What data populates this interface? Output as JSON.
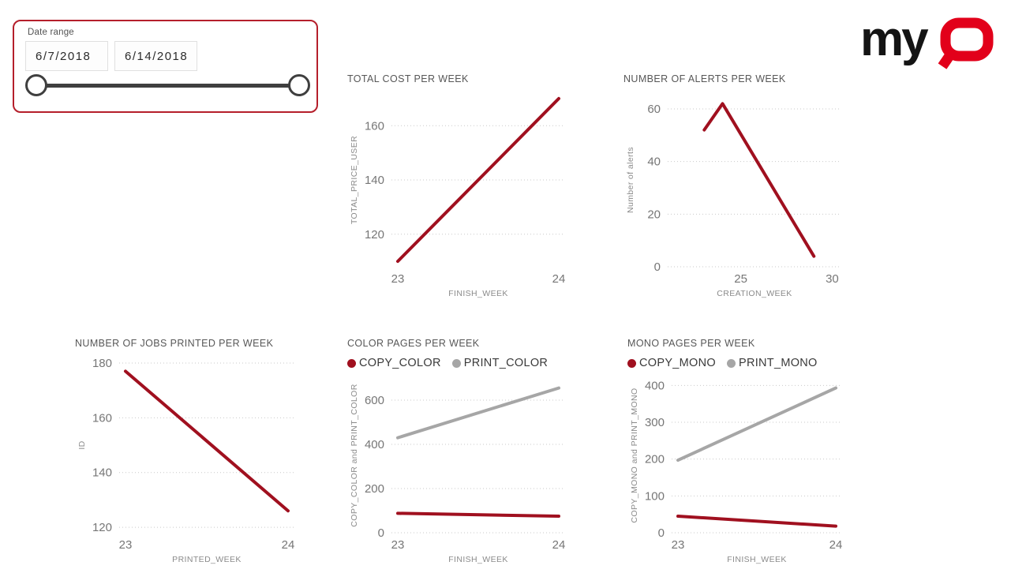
{
  "slicer": {
    "label": "Date range",
    "start_value": "6/7/2018",
    "end_value": "6/14/2018",
    "border_color": "#b51f2b",
    "slider": {
      "left_position_pct": 0,
      "right_position_pct": 100
    }
  },
  "logo": {
    "text_my": "my",
    "text_q": "Q",
    "my_color": "#141414",
    "q_color": "#e2001a"
  },
  "colors": {
    "line_red": "#a0101f",
    "line_gray": "#a6a6a6",
    "gridline": "#c9c9c9"
  },
  "chart_data": [
    {
      "type": "line",
      "title": "TOTAL COST PER WEEK",
      "xlabel": "FINISH_WEEK",
      "ylabel": "TOTAL_PRICE_USER",
      "x": [
        23,
        24
      ],
      "xticks": [
        23,
        24
      ],
      "xlim": [
        23,
        24
      ],
      "xpad": 8,
      "yticks": [
        120,
        140,
        160
      ],
      "ylim": [
        108,
        172
      ],
      "grid": "dotted-horizontal",
      "legend_position": "none",
      "series": [
        {
          "name": "TOTAL_PRICE_USER",
          "color": "#a0101f",
          "values": [
            110,
            170
          ]
        }
      ]
    },
    {
      "type": "line",
      "title": "NUMBER OF ALERTS PER WEEK",
      "xlabel": "CREATION_WEEK",
      "ylabel": "Number of alerts",
      "x": [
        23,
        24,
        29
      ],
      "xticks": [
        25,
        30
      ],
      "xlim": [
        21,
        30.5
      ],
      "xpad": 0,
      "yticks": [
        0,
        20,
        40,
        60
      ],
      "ylim": [
        0,
        66
      ],
      "grid": "dotted-horizontal",
      "legend_position": "none",
      "series": [
        {
          "name": "Number of alerts",
          "color": "#a0101f",
          "values": [
            52,
            62,
            4
          ]
        }
      ]
    },
    {
      "type": "line",
      "title": "NUMBER OF JOBS PRINTED PER WEEK",
      "xlabel": "PRINTED_WEEK",
      "ylabel": "ID",
      "x": [
        23,
        24
      ],
      "xticks": [
        23,
        24
      ],
      "xlim": [
        23,
        24
      ],
      "xpad": 8,
      "yticks": [
        120,
        140,
        160,
        180
      ],
      "ylim": [
        118,
        182
      ],
      "grid": "dotted-horizontal",
      "legend_position": "none",
      "series": [
        {
          "name": "ID",
          "color": "#a0101f",
          "values": [
            177,
            126
          ]
        }
      ]
    },
    {
      "type": "line",
      "title": "COLOR PAGES PER WEEK",
      "xlabel": "FINISH_WEEK",
      "ylabel": "COPY_COLOR and PRINT_COLOR",
      "x": [
        23,
        24
      ],
      "xticks": [
        23,
        24
      ],
      "xlim": [
        23,
        24
      ],
      "xpad": 8,
      "yticks": [
        0,
        200,
        400,
        600
      ],
      "ylim": [
        0,
        700
      ],
      "grid": "dotted-horizontal",
      "legend_position": "top",
      "legend": [
        {
          "label": "COPY_COLOR",
          "color": "#a0101f"
        },
        {
          "label": "PRINT_COLOR",
          "color": "#a6a6a6"
        }
      ],
      "series": [
        {
          "name": "COPY_COLOR",
          "color": "#a0101f",
          "values": [
            88,
            75
          ]
        },
        {
          "name": "PRINT_COLOR",
          "color": "#a6a6a6",
          "values": [
            430,
            655
          ]
        }
      ]
    },
    {
      "type": "line",
      "title": "MONO PAGES PER WEEK",
      "xlabel": "FINISH_WEEK",
      "ylabel": "COPY_MONO and PRINT_MONO",
      "x": [
        23,
        24
      ],
      "xticks": [
        23,
        24
      ],
      "xlim": [
        23,
        24
      ],
      "xpad": 8,
      "yticks": [
        0,
        100,
        200,
        300,
        400
      ],
      "ylim": [
        0,
        420
      ],
      "grid": "dotted-horizontal",
      "legend_position": "top",
      "legend": [
        {
          "label": "COPY_MONO",
          "color": "#a0101f"
        },
        {
          "label": "PRINT_MONO",
          "color": "#a6a6a6"
        }
      ],
      "series": [
        {
          "name": "COPY_MONO",
          "color": "#a0101f",
          "values": [
            45,
            18
          ]
        },
        {
          "name": "PRINT_MONO",
          "color": "#a6a6a6",
          "values": [
            197,
            393
          ]
        }
      ]
    }
  ]
}
